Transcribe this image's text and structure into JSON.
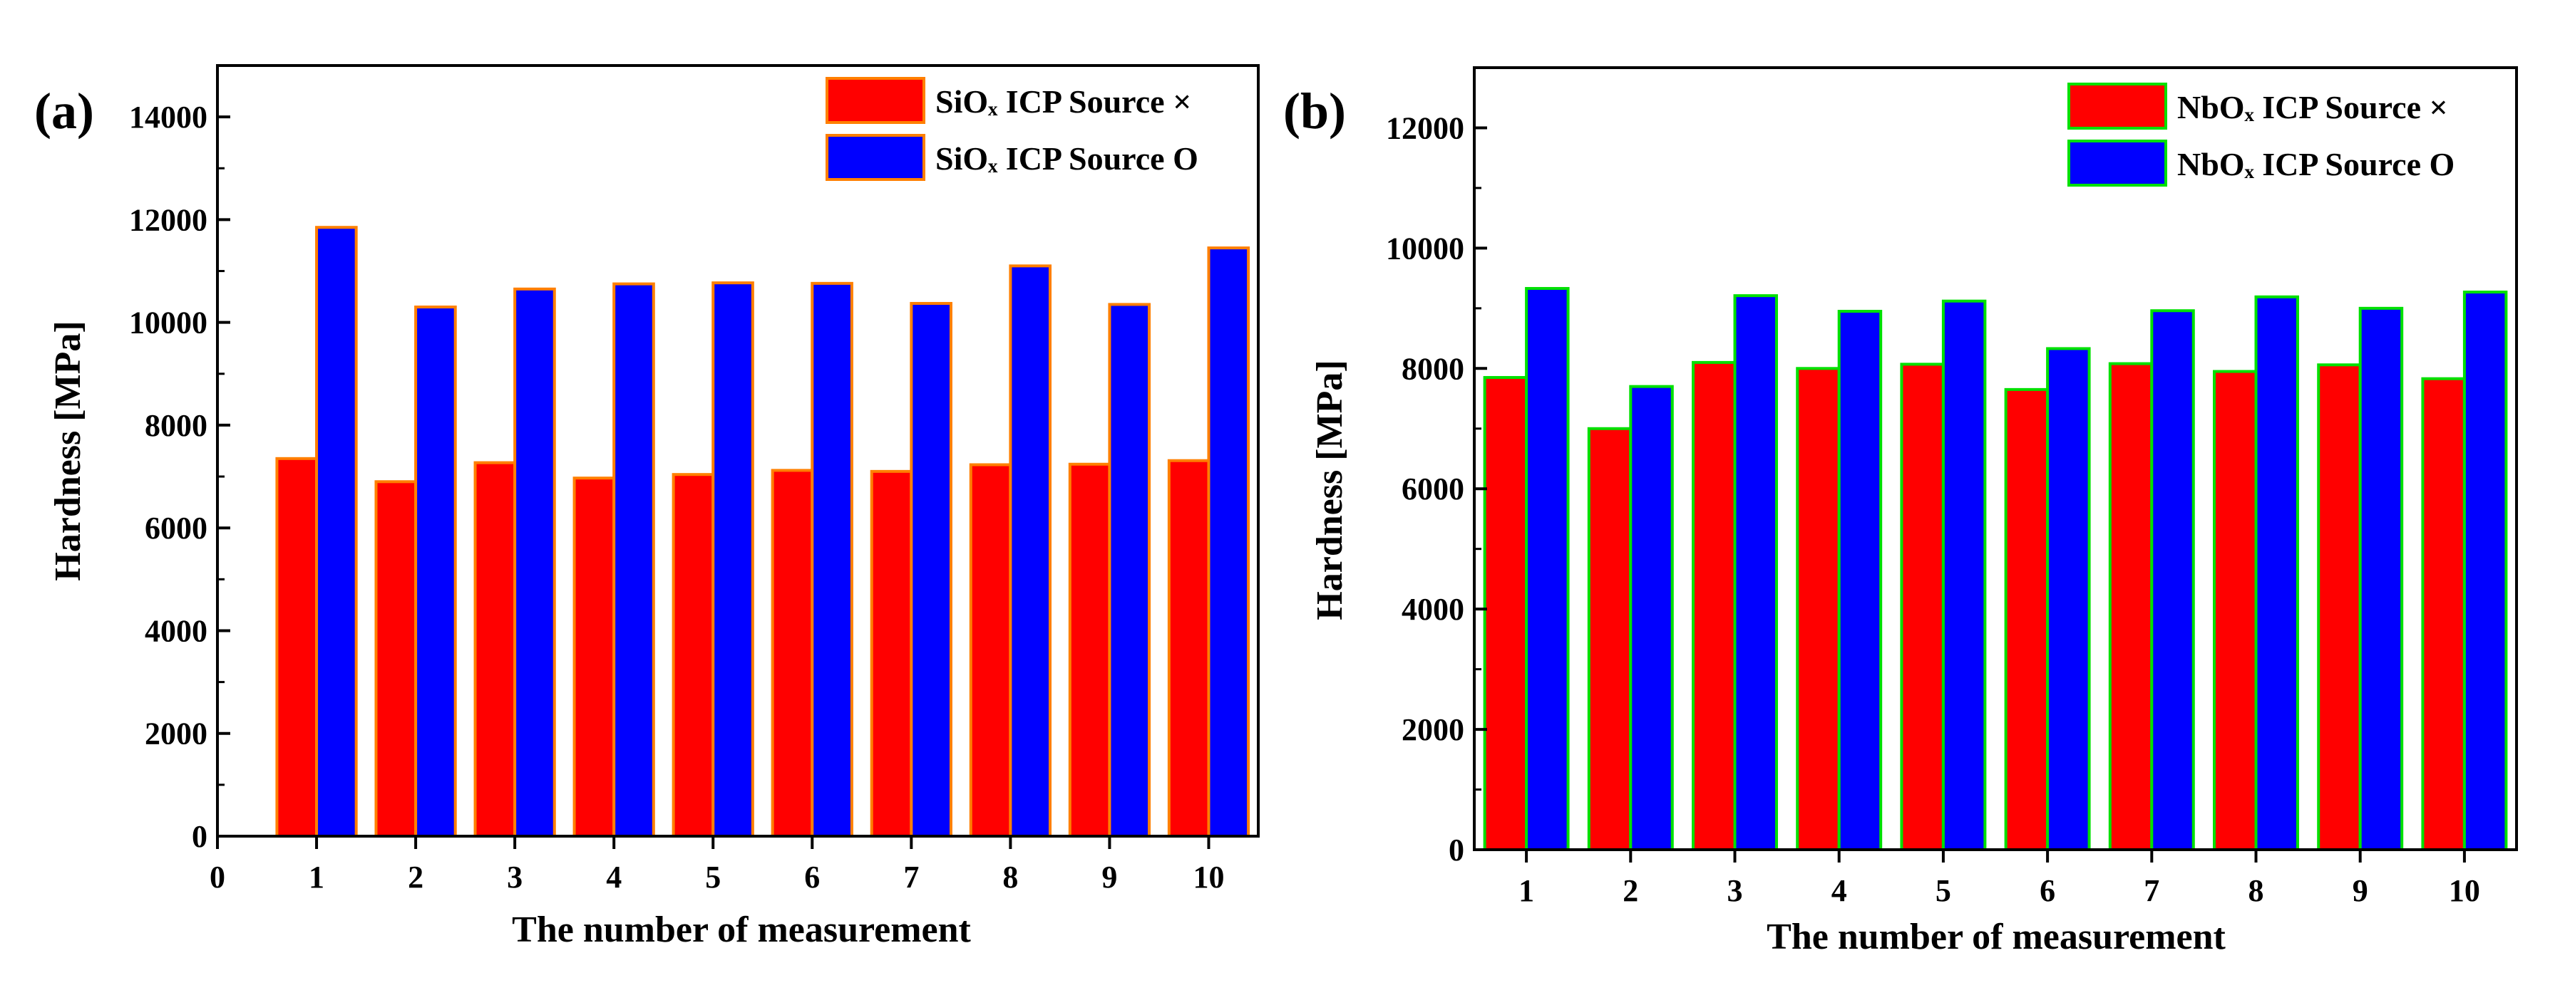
{
  "colors": {
    "series_x": "#ff0000",
    "series_o": "#0000ff",
    "edge_a": "#ff7f00",
    "edge_b": "#00e000"
  },
  "chart_data": [
    {
      "panel_label": "(a)",
      "type": "bar",
      "xlabel": "The number of measurement",
      "ylabel": "Hardness [MPa]",
      "x_ticks": [
        "0",
        "1",
        "2",
        "3",
        "4",
        "5",
        "6",
        "7",
        "8",
        "9",
        "10"
      ],
      "y_ticks": [
        "0",
        "2000",
        "4000",
        "6000",
        "8000",
        "10000",
        "12000",
        "14000"
      ],
      "xlim": [
        0,
        10.5
      ],
      "ylim": [
        0,
        15000
      ],
      "categories": [
        1,
        2,
        3,
        4,
        5,
        6,
        7,
        8,
        9,
        10
      ],
      "legend_position": "top-right",
      "series": [
        {
          "name": "SiOₓ ICP Source ×",
          "values": [
            7350,
            6900,
            7270,
            6970,
            7040,
            7120,
            7100,
            7230,
            7240,
            7310
          ]
        },
        {
          "name": "SiOₓ ICP Source O",
          "values": [
            11850,
            10300,
            10650,
            10750,
            10770,
            10760,
            10370,
            11100,
            10350,
            11450
          ]
        }
      ]
    },
    {
      "panel_label": "(b)",
      "type": "bar",
      "xlabel": "The number of measurement",
      "ylabel": "Hardness [MPa]",
      "x_ticks": [
        "1",
        "2",
        "3",
        "4",
        "5",
        "6",
        "7",
        "8",
        "9",
        "10"
      ],
      "y_ticks": [
        "0",
        "2000",
        "4000",
        "6000",
        "8000",
        "10000",
        "12000"
      ],
      "xlim": [
        0.5,
        10.5
      ],
      "ylim": [
        0,
        13000
      ],
      "categories": [
        1,
        2,
        3,
        4,
        5,
        6,
        7,
        8,
        9,
        10
      ],
      "legend_position": "top-right",
      "series": [
        {
          "name": "NbOₓ ICP Source ×",
          "values": [
            7850,
            7000,
            8100,
            8000,
            8070,
            7650,
            8080,
            7950,
            8060,
            7830
          ]
        },
        {
          "name": "NbOₓ ICP Source O",
          "values": [
            9330,
            7700,
            9210,
            8950,
            9120,
            8330,
            8960,
            9190,
            9000,
            9270
          ]
        }
      ]
    }
  ]
}
